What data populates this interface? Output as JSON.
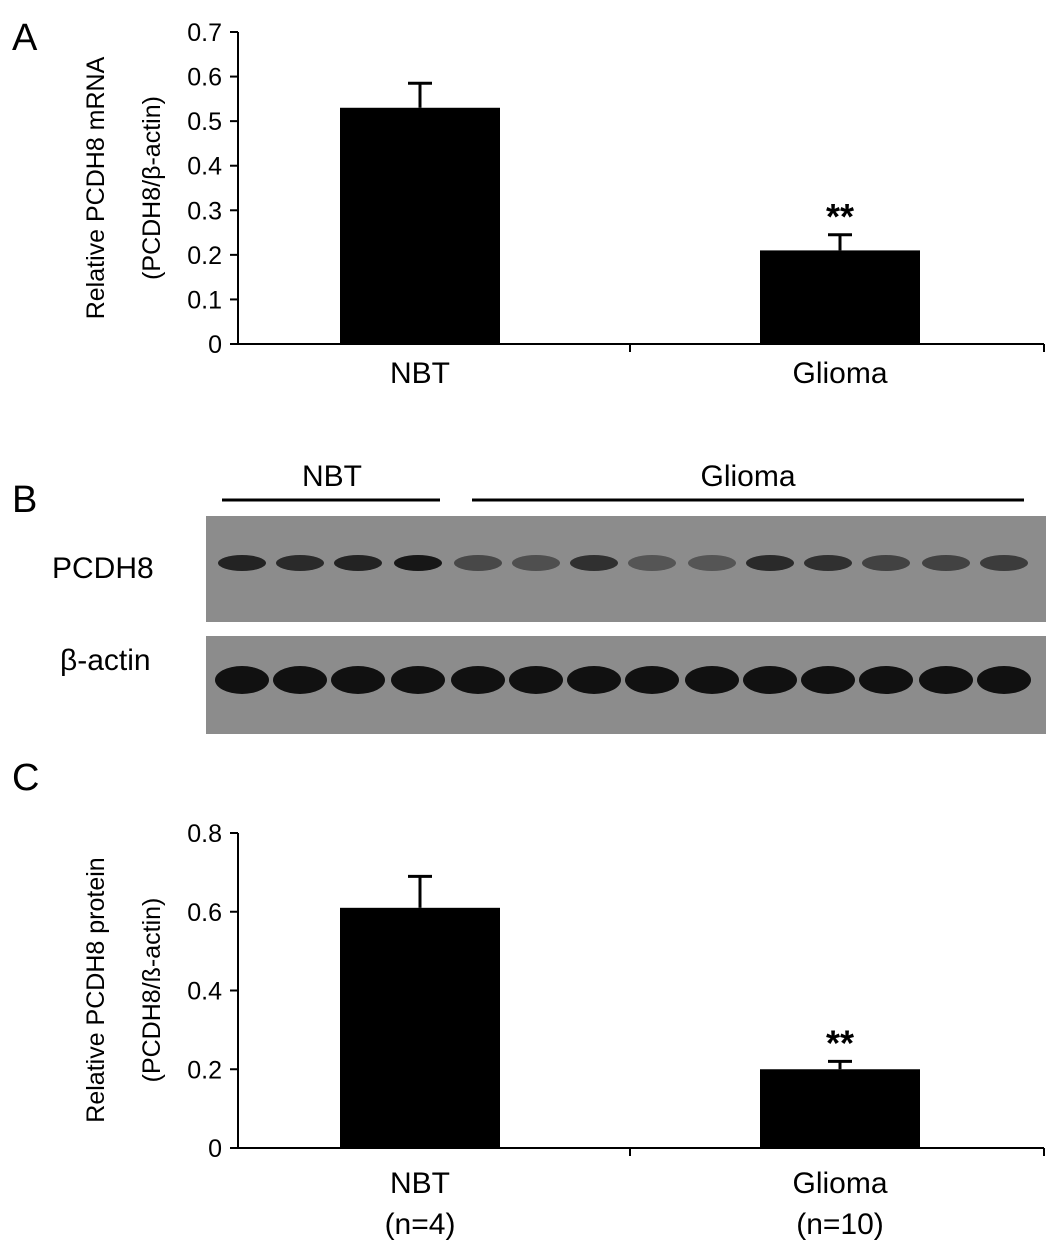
{
  "figure": {
    "panel_labels": [
      "A",
      "B",
      "C"
    ]
  },
  "blot": {
    "groups": [
      {
        "label": "NBT",
        "lanes": 4
      },
      {
        "label": "Glioma",
        "lanes": 10
      }
    ],
    "rows": [
      {
        "label": "PCDH8",
        "band_intensity": [
          0.85,
          0.8,
          0.85,
          0.95,
          0.55,
          0.5,
          0.75,
          0.45,
          0.45,
          0.8,
          0.75,
          0.6,
          0.6,
          0.65
        ]
      },
      {
        "label": "β-actin",
        "band_intensity": [
          1,
          1,
          1,
          1,
          1,
          1,
          1,
          1,
          1,
          1,
          1,
          1,
          1,
          1
        ]
      }
    ],
    "colors": {
      "membrane": "#8c8c8c",
      "band": "#111111"
    }
  },
  "chart_data": [
    {
      "type": "bar",
      "panel": "A",
      "categories": [
        "NBT",
        "Glioma"
      ],
      "values": [
        0.53,
        0.21
      ],
      "errors": [
        0.055,
        0.035
      ],
      "annotations": [
        "",
        "**"
      ],
      "ylabel_line1": "Relative PCDH8 mRNA",
      "ylabel_line2": "(PCDH8/β-actin)",
      "ylim": [
        0,
        0.7
      ],
      "yticks": [
        "0",
        "0.1",
        "0.2",
        "0.3",
        "0.4",
        "0.5",
        "0.6",
        "0.7"
      ],
      "grid": false,
      "bar_color": "#000000"
    },
    {
      "type": "bar",
      "panel": "C",
      "categories": [
        "NBT",
        "Glioma"
      ],
      "category_sublabels": [
        "(n=4)",
        "(n=10)"
      ],
      "values": [
        0.61,
        0.2
      ],
      "errors": [
        0.08,
        0.02
      ],
      "annotations": [
        "",
        "**"
      ],
      "ylabel_line1": "Relative PCDH8 protein",
      "ylabel_line2": "(PCDH8/ß-actin)",
      "ylim": [
        0,
        0.8
      ],
      "yticks": [
        "0",
        "0.2",
        "0.4",
        "0.6",
        "0.8"
      ],
      "grid": false,
      "bar_color": "#000000"
    }
  ]
}
